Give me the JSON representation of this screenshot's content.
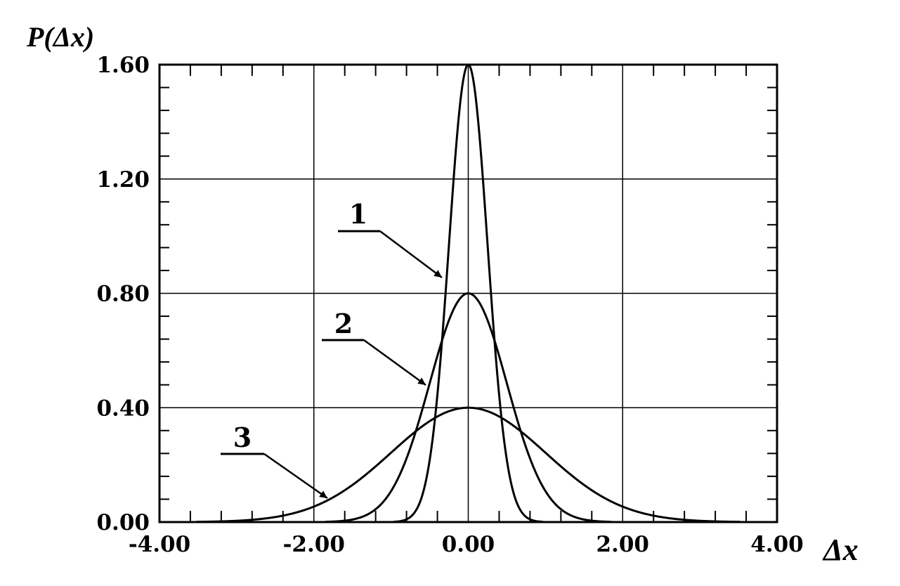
{
  "chart_data": {
    "type": "line",
    "title": "",
    "ylabel": "P(Δx)",
    "xlabel": "Δx",
    "xlim": [
      -4.0,
      4.0
    ],
    "ylim": [
      0.0,
      1.6
    ],
    "x_ticks": [
      "-4.00",
      "-2.00",
      "0.00",
      "2.00",
      "4.00"
    ],
    "y_ticks": [
      "0.00",
      "0.40",
      "0.80",
      "1.20",
      "1.60"
    ],
    "grid": true,
    "series": [
      {
        "name": "1",
        "sigma": 0.25,
        "peak": 1.6
      },
      {
        "name": "2",
        "sigma": 0.5,
        "peak": 0.8
      },
      {
        "name": "3",
        "sigma": 1.0,
        "peak": 0.4
      }
    ]
  }
}
